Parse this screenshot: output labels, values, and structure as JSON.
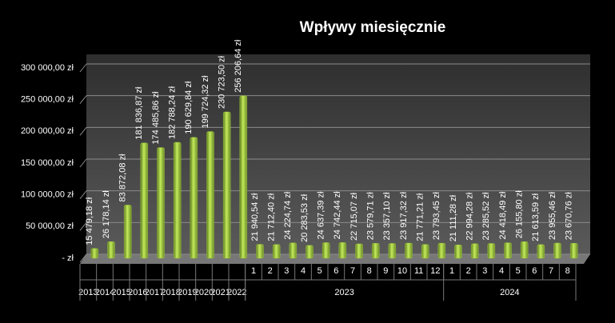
{
  "chart_data": {
    "type": "bar",
    "title": "Wpływy miesięcznie",
    "categories": [
      "2013",
      "2014",
      "2015",
      "2016",
      "2017",
      "2018",
      "2019",
      "2020",
      "2021",
      "2022",
      "1",
      "2",
      "3",
      "4",
      "5",
      "6",
      "7",
      "8",
      "9",
      "10",
      "11",
      "12",
      "1",
      "2",
      "3",
      "4",
      "5",
      "6",
      "7",
      "8"
    ],
    "category_groups": [
      {
        "label": "2023",
        "count": 12
      },
      {
        "label": "2024",
        "count": 8
      }
    ],
    "values": [
      15479.18,
      26178.14,
      83872.08,
      181836.87,
      174485.86,
      182788.24,
      190629.84,
      199724.32,
      230723.5,
      256206.64,
      21940.54,
      21712.4,
      24224.74,
      20283.53,
      24637.39,
      24742.44,
      22715.07,
      23579.71,
      23357.1,
      23917.32,
      21771.21,
      23793.45,
      21111.28,
      22994.28,
      23285.52,
      24418.49,
      26155.8,
      21613.59,
      23955.46,
      23670.76
    ],
    "value_labels": [
      "15 479,18 zł",
      "26 178,14 zł",
      "83 872,08 zł",
      "181 836,87 zł",
      "174 485,86 zł",
      "182 788,24 zł",
      "190 629,84 zł",
      "199 724,32 zł",
      "230 723,50 zł",
      "256 206,64 zł",
      "21 940,54 zł",
      "21 712,40 zł",
      "24 224,74 zł",
      "20 283,53 zł",
      "24 637,39 zł",
      "24 742,44 zł",
      "22 715,07 zł",
      "23 579,71 zł",
      "23 357,10 zł",
      "23 917,32 zł",
      "21 771,21 zł",
      "23 793,45 zł",
      "21 111,28 zł",
      "22 994,28 zł",
      "23 285,52 zł",
      "24 418,49 zł",
      "26 155,80 zł",
      "21 613,59 zł",
      "23 955,46 zł",
      "23 670,76 zł"
    ],
    "color": "#9bc23c",
    "ylim": [
      0,
      300000
    ],
    "yticks": [
      {
        "value": 0,
        "label": "-  zł"
      },
      {
        "value": 50000,
        "label": "50 000,00 zł"
      },
      {
        "value": 100000,
        "label": "100 000,00 zł"
      },
      {
        "value": 150000,
        "label": "150 000,00 zł"
      },
      {
        "value": 200000,
        "label": "200 000,00 zł"
      },
      {
        "value": 250000,
        "label": "250 000,00 zł"
      },
      {
        "value": 300000,
        "label": "300 000,00 zł"
      }
    ],
    "grid": true
  }
}
